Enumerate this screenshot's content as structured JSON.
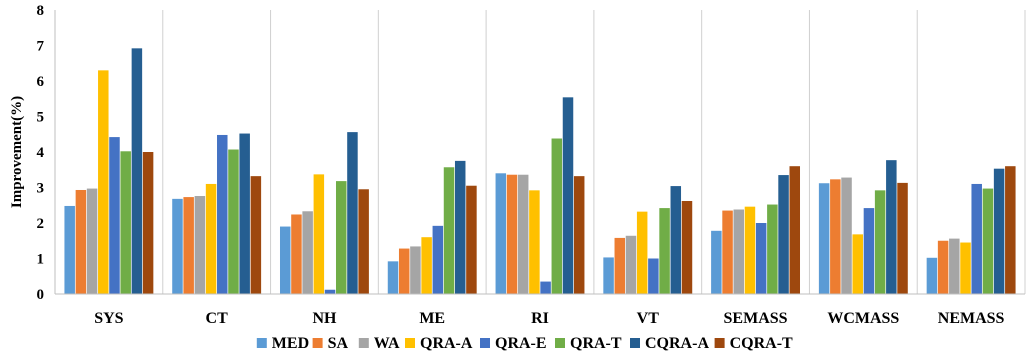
{
  "chart_data": {
    "type": "bar",
    "title": "",
    "xlabel": "",
    "ylabel": "Improvement(%)",
    "ylim": [
      0,
      8
    ],
    "yticks": [
      "0",
      "1",
      "2",
      "3",
      "4",
      "5",
      "6",
      "7",
      "8"
    ],
    "grid": "vertical category separators",
    "legend_position": "bottom",
    "categories": [
      "SYS",
      "CT",
      "NH",
      "ME",
      "RI",
      "VT",
      "SEMASS",
      "WCMASS",
      "NEMASS"
    ],
    "series": [
      {
        "name": "MED",
        "color": "#5b9bd5",
        "values": [
          2.48,
          2.68,
          1.9,
          0.92,
          3.4,
          1.03,
          1.78,
          3.12,
          1.02
        ]
      },
      {
        "name": "SA",
        "color": "#ed7d31",
        "values": [
          2.93,
          2.73,
          2.24,
          1.28,
          3.36,
          1.58,
          2.35,
          3.23,
          1.5
        ]
      },
      {
        "name": "WA",
        "color": "#a5a5a5",
        "values": [
          2.97,
          2.76,
          2.33,
          1.34,
          3.36,
          1.64,
          2.38,
          3.28,
          1.56
        ]
      },
      {
        "name": "QRA-A",
        "color": "#ffc000",
        "values": [
          6.3,
          3.1,
          3.37,
          1.6,
          2.92,
          2.32,
          2.46,
          1.68,
          1.45
        ]
      },
      {
        "name": "QRA-E",
        "color": "#4472c4",
        "values": [
          4.42,
          4.48,
          0.12,
          1.92,
          0.35,
          1.0,
          2.0,
          2.42,
          3.1
        ]
      },
      {
        "name": "QRA-T",
        "color": "#70ad47",
        "values": [
          4.02,
          4.07,
          3.18,
          3.57,
          4.38,
          2.42,
          2.52,
          2.92,
          2.97
        ]
      },
      {
        "name": "CQRA-A",
        "color": "#255e91",
        "values": [
          6.92,
          4.52,
          4.56,
          3.75,
          5.54,
          3.04,
          3.35,
          3.77,
          3.53
        ]
      },
      {
        "name": "CQRA-T",
        "color": "#9e480e",
        "values": [
          4.0,
          3.32,
          2.95,
          3.05,
          3.32,
          2.62,
          3.6,
          3.13,
          3.6
        ]
      }
    ]
  }
}
